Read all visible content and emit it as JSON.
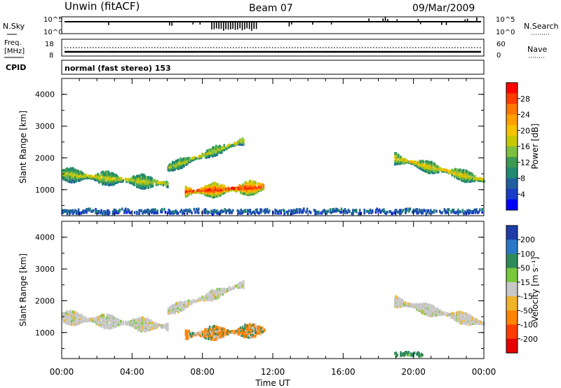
{
  "header": {
    "station": "Unwin (fitACF)",
    "beam": "Beam 07",
    "date": "09/Mar/2009"
  },
  "top_panels": {
    "nsky_label": "N.Sky",
    "nsky_ticks": [
      "10^5",
      "10^0"
    ],
    "nsearch_label": "N.Search",
    "nsearch_ticks": [
      "10^5",
      "10^0"
    ],
    "freq_label_1": "Freq.",
    "freq_label_2": "[MHz]",
    "freq_ticks": [
      "18",
      "8"
    ],
    "nave_label": "Nave",
    "nave_ticks": [
      "60",
      "0"
    ],
    "cpid_label": "CPID",
    "cpid_text": "normal (fast stereo) 153"
  },
  "x_axis": {
    "label": "Time UT",
    "ticks": [
      "00:00",
      "04:00",
      "08:00",
      "12:00",
      "16:00",
      "20:00",
      "00:00"
    ],
    "range_hours": [
      0,
      24
    ]
  },
  "panels": [
    {
      "id": "power",
      "ylabel": "Slant Range [km]",
      "yticks": [
        "4000",
        "3000",
        "2000",
        "1000"
      ],
      "ylim": [
        180,
        4500
      ],
      "colorbar_label": "Power [dB]",
      "colorbar_ticks": [
        "28",
        "24",
        "20",
        "16",
        "12",
        "8",
        "4"
      ],
      "colorbar_colors": [
        "#ff0000",
        "#ff3c00",
        "#ff7800",
        "#ffa000",
        "#f5c400",
        "#c8c800",
        "#7fbf3f",
        "#3c9a55",
        "#1f8a70",
        "#1f5fa0",
        "#1a3cc8",
        "#0000ff"
      ]
    },
    {
      "id": "velocity",
      "ylabel": "Slant Range [km]",
      "yticks": [
        "4000",
        "3000",
        "2000",
        "1000"
      ],
      "ylim": [
        180,
        4500
      ],
      "colorbar_label": "Velocity [m s⁻¹]",
      "colorbar_ticks": [
        "200",
        "100",
        "50",
        "15",
        "-15",
        "-50",
        "-100",
        "-200"
      ],
      "colorbar_colors": [
        "#1e3ca8",
        "#2a78c8",
        "#2f8a5a",
        "#79c83c",
        "#c8c8c8",
        "#f0b428",
        "#ff8200",
        "#ff3c00",
        "#e60000"
      ]
    }
  ],
  "chart_data": [
    {
      "type": "heatmap",
      "title": "Power [dB]",
      "xlabel": "Time UT",
      "ylabel": "Slant Range [km]",
      "x_range": [
        0,
        24
      ],
      "y_range": [
        180,
        4500
      ],
      "value_range": [
        0,
        32
      ],
      "regions": [
        {
          "name": "morning band",
          "t": [
            0,
            6.0
          ],
          "range_center": [
            1500,
            1200
          ],
          "width_km": 350,
          "peak_db": 18
        },
        {
          "name": "rising band",
          "t": [
            6.0,
            10.3
          ],
          "range_center": [
            1700,
            2550
          ],
          "width_km": 250,
          "peak_db": 18
        },
        {
          "name": "strong patch",
          "t": [
            7.0,
            11.5
          ],
          "range_center": [
            950,
            1100
          ],
          "width_km": 350,
          "peak_db": 30
        },
        {
          "name": "evening band",
          "t": [
            18.9,
            24
          ],
          "range_center": [
            2000,
            1300
          ],
          "width_km": 300,
          "peak_db": 20
        },
        {
          "name": "ground scatter",
          "t": [
            0,
            24
          ],
          "range_center": [
            300,
            300
          ],
          "width_km": 80,
          "peak_db": 8
        }
      ]
    },
    {
      "type": "heatmap",
      "title": "Velocity [m s⁻¹]",
      "xlabel": "Time UT",
      "ylabel": "Slant Range [km]",
      "x_range": [
        0,
        24
      ],
      "y_range": [
        180,
        4500
      ],
      "value_range": [
        -200,
        200
      ],
      "regions": [
        {
          "name": "morning band",
          "t": [
            0,
            6.0
          ],
          "velocity": 0
        },
        {
          "name": "rising band",
          "t": [
            6.0,
            10.3
          ],
          "velocity": 0
        },
        {
          "name": "strong patch",
          "t": [
            7.0,
            11.5
          ],
          "velocity": -40
        },
        {
          "name": "evening band",
          "t": [
            18.9,
            24
          ],
          "velocity": 0
        },
        {
          "name": "evening upper",
          "t": [
            18.9,
            20.5
          ],
          "velocity": 40
        }
      ]
    }
  ]
}
